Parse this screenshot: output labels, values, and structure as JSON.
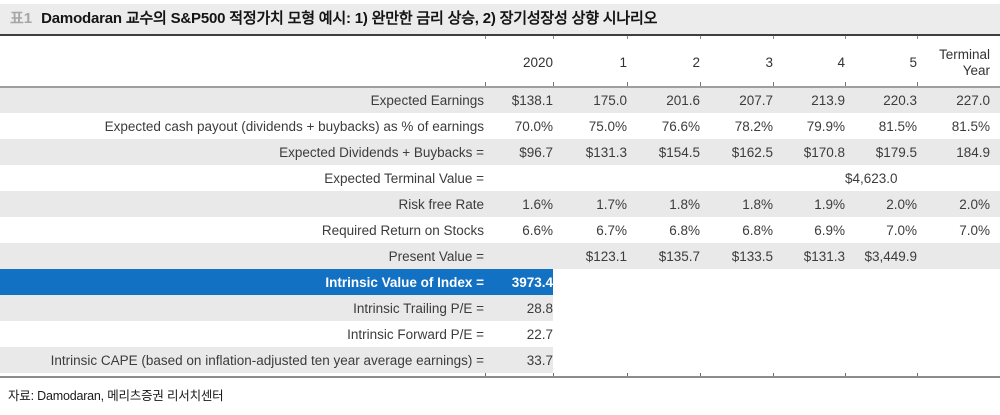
{
  "header": {
    "tag": "표1",
    "title": "Damodaran 교수의 S&P500 적정가치 모형 예시: 1) 완만한 금리 상승, 2) 장기성장성 상향 시나리오"
  },
  "table": {
    "columns": [
      "2020",
      "1",
      "2",
      "3",
      "4",
      "5",
      "Terminal\nYear"
    ],
    "rows": [
      {
        "label": "Expected Earnings",
        "values": [
          "$138.1",
          "175.0",
          "201.6",
          "207.7",
          "213.9",
          "220.3",
          "227.0"
        ],
        "style": "shaded"
      },
      {
        "label": "Expected cash payout (dividends + buybacks) as % of earnings",
        "values": [
          "70.0%",
          "75.0%",
          "76.6%",
          "78.2%",
          "79.9%",
          "81.5%",
          "81.5%"
        ],
        "style": "plain"
      },
      {
        "label": "Expected Dividends + Buybacks =",
        "values": [
          "$96.7",
          "$131.3",
          "$154.5",
          "$162.5",
          "$170.8",
          "$179.5",
          "184.9"
        ],
        "style": "shaded"
      },
      {
        "label": "Expected Terminal Value =",
        "values": [
          "",
          "",
          "",
          "",
          "",
          "$4,623.0",
          ""
        ],
        "style": "plain"
      },
      {
        "label": "Risk free Rate",
        "values": [
          "1.6%",
          "1.7%",
          "1.8%",
          "1.8%",
          "1.9%",
          "2.0%",
          "2.0%"
        ],
        "style": "shaded"
      },
      {
        "label": "Required Return on Stocks",
        "values": [
          "6.6%",
          "6.7%",
          "6.8%",
          "6.8%",
          "6.9%",
          "7.0%",
          "7.0%"
        ],
        "style": "plain"
      },
      {
        "label": "Present Value =",
        "values": [
          "",
          "$123.1",
          "$135.7",
          "$133.5",
          "$131.3",
          "$3,449.9",
          ""
        ],
        "style": "shaded"
      },
      {
        "label": "Intrinsic Value of Index =",
        "values": [
          "3973.4",
          "",
          "",
          "",
          "",
          "",
          ""
        ],
        "style": "highlight-partial"
      },
      {
        "label": "Intrinsic Trailing P/E =",
        "values": [
          "28.8",
          "",
          "",
          "",
          "",
          "",
          ""
        ],
        "style": "shaded-partial"
      },
      {
        "label": "Intrinsic Forward P/E =",
        "values": [
          "22.7",
          "",
          "",
          "",
          "",
          "",
          ""
        ],
        "style": "plain"
      },
      {
        "label": "Intrinsic CAPE (based on inflation-adjusted ten year average earnings) =",
        "values": [
          "33.7",
          "",
          "",
          "",
          "",
          "",
          ""
        ],
        "style": "shaded-partial"
      }
    ]
  },
  "footer": {
    "source": "자료: Damodaran, 메리츠증권 리서치센터"
  },
  "colors": {
    "highlight_blue": "#1271c3",
    "stripe_gray": "#e9e9e9",
    "title_bar_gray": "#ececec"
  }
}
